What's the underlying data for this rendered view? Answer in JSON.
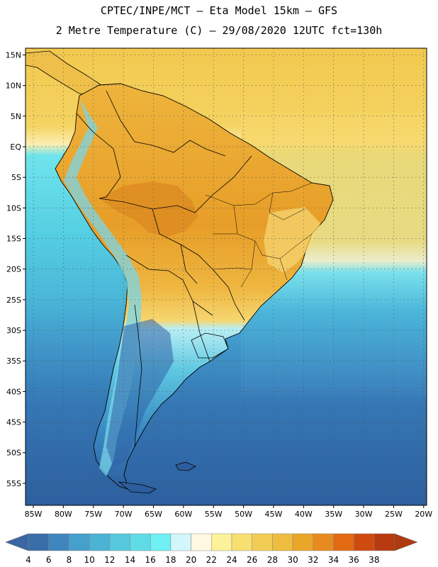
{
  "header": {
    "line1": "CPTEC/INPE/MCT –  Eta Model 15km – GFS",
    "line2": "2 Metre Temperature (C) – 29/08/2020 12UTC fct=130h"
  },
  "axes": {
    "lat_labels": [
      "15N",
      "10N",
      "5N",
      "EQ",
      "5S",
      "10S",
      "15S",
      "20S",
      "25S",
      "30S",
      "35S",
      "40S",
      "45S",
      "50S",
      "55S"
    ],
    "lon_labels": [
      "85W",
      "80W",
      "75W",
      "70W",
      "65W",
      "60W",
      "55W",
      "50W",
      "45W",
      "40W",
      "35W",
      "30W",
      "25W",
      "20W"
    ],
    "lat_values": [
      15,
      10,
      5,
      0,
      -5,
      -10,
      -15,
      -20,
      -25,
      -30,
      -35,
      -40,
      -45,
      -50,
      -55
    ],
    "lon_values": [
      -85,
      -80,
      -75,
      -70,
      -65,
      -60,
      -55,
      -50,
      -45,
      -40,
      -35,
      -30,
      -25,
      -20
    ]
  },
  "colorbar": {
    "labels": [
      "4",
      "6",
      "8",
      "10",
      "12",
      "14",
      "16",
      "18",
      "20",
      "22",
      "24",
      "26",
      "28",
      "30",
      "32",
      "34",
      "36",
      "38"
    ],
    "colors": [
      "#3a6ea8",
      "#3f86be",
      "#45a0cc",
      "#4ab3d6",
      "#55c8de",
      "#5fdbe6",
      "#6ff0f2",
      "#d2f7fa",
      "#fff8e2",
      "#fdf29a",
      "#f7e070",
      "#f2cd55",
      "#eebd40",
      "#eaa628",
      "#e78b20",
      "#e26a12",
      "#cf4a0e",
      "#b83a10"
    ],
    "low_arrow_color": "#3a66a4",
    "high_arrow_color": "#b03a10"
  },
  "map_colors": {
    "ocean_deep": "#2d5f9e",
    "ocean_mid": "#3f86be",
    "ocean_light": "#4ab8d8",
    "ocean_cyan": "#5fdbe6",
    "ocean_warm": "#f2cd55",
    "ocean_tropical": "#f7d66a",
    "land_hot": "#e8a22a",
    "land_warm": "#eeb840",
    "land_mild": "#f4d060",
    "andes_cold": "#7fe6ee",
    "patagonia": "#2f63a6",
    "border": "#000000"
  }
}
